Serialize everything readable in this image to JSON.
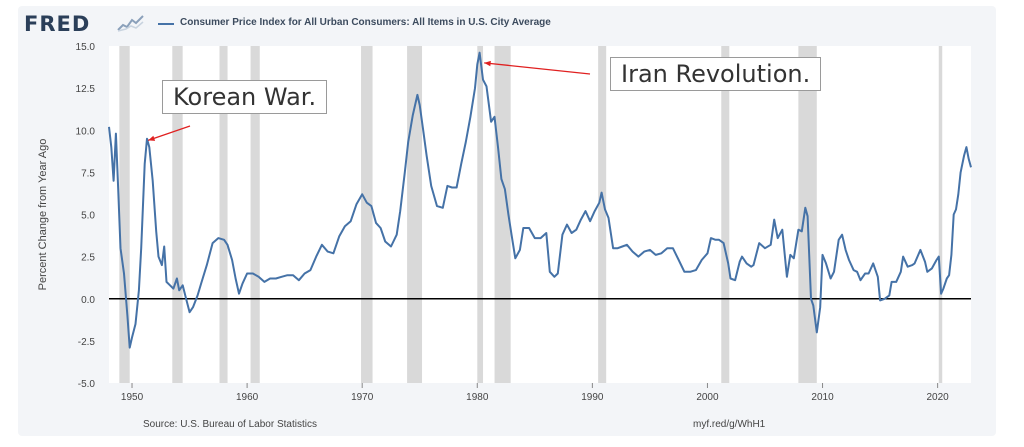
{
  "header": {
    "logo": "FRED",
    "series_title": "Consumer Price Index for All Urban Consumers: All Items in U.S. City Average"
  },
  "footer": {
    "source": "Source: U.S. Bureau of Labor Statistics",
    "url": "myf.red/g/WhH1"
  },
  "colors": {
    "line": "#4572a7",
    "recession": "#d9d9d9",
    "background": "#ffffff",
    "arrow": "#e02020",
    "zero_line": "#000000"
  },
  "chart_data": {
    "type": "line",
    "ylabel": "Percent Change from Year Ago",
    "xlabel": "",
    "xlim": [
      1948.0,
      2022.9
    ],
    "ylim": [
      -5.0,
      15.0
    ],
    "x_ticks": [
      1950,
      1960,
      1970,
      1980,
      1990,
      2000,
      2010,
      2020
    ],
    "x_tick_labels": [
      "1950",
      "1960",
      "1970",
      "1980",
      "1990",
      "2000",
      "2010",
      "2020"
    ],
    "y_ticks": [
      -5.0,
      -2.5,
      0.0,
      2.5,
      5.0,
      7.5,
      10.0,
      12.5,
      15.0
    ],
    "y_tick_labels": [
      "-5.0",
      "-2.5",
      "0.0",
      "2.5",
      "5.0",
      "7.5",
      "10.0",
      "12.5",
      "15.0"
    ],
    "grid": false,
    "reference_line": 0.0,
    "recessions": [
      [
        1948.9,
        1949.8
      ],
      [
        1953.5,
        1954.4
      ],
      [
        1957.6,
        1958.3
      ],
      [
        1960.3,
        1961.1
      ],
      [
        1969.9,
        1970.9
      ],
      [
        1973.9,
        1975.2
      ],
      [
        1980.0,
        1980.5
      ],
      [
        1981.5,
        1982.9
      ],
      [
        1990.5,
        1991.2
      ],
      [
        2001.2,
        2001.9
      ],
      [
        2007.9,
        2009.5
      ],
      [
        2020.1,
        2020.4
      ]
    ],
    "series": [
      {
        "values": [
          [
            1948.0,
            10.2
          ],
          [
            1948.2,
            9.0
          ],
          [
            1948.4,
            7.0
          ],
          [
            1948.6,
            9.8
          ],
          [
            1948.8,
            6.5
          ],
          [
            1949.0,
            3.0
          ],
          [
            1949.3,
            1.5
          ],
          [
            1949.6,
            -1.0
          ],
          [
            1949.8,
            -2.9
          ],
          [
            1950.0,
            -2.3
          ],
          [
            1950.3,
            -1.5
          ],
          [
            1950.6,
            0.5
          ],
          [
            1950.8,
            3.0
          ],
          [
            1951.1,
            8.0
          ],
          [
            1951.3,
            9.5
          ],
          [
            1951.5,
            9.0
          ],
          [
            1951.8,
            7.0
          ],
          [
            1952.1,
            4.0
          ],
          [
            1952.3,
            2.5
          ],
          [
            1952.6,
            2.0
          ],
          [
            1952.8,
            3.1
          ],
          [
            1953.0,
            1.0
          ],
          [
            1953.3,
            0.8
          ],
          [
            1953.6,
            0.6
          ],
          [
            1953.9,
            1.2
          ],
          [
            1954.1,
            0.5
          ],
          [
            1954.4,
            0.8
          ],
          [
            1954.7,
            0.0
          ],
          [
            1955.0,
            -0.8
          ],
          [
            1955.3,
            -0.5
          ],
          [
            1955.7,
            0.2
          ],
          [
            1956.0,
            0.9
          ],
          [
            1956.5,
            2.0
          ],
          [
            1957.0,
            3.3
          ],
          [
            1957.5,
            3.6
          ],
          [
            1958.0,
            3.5
          ],
          [
            1958.3,
            3.2
          ],
          [
            1958.7,
            2.3
          ],
          [
            1959.0,
            1.2
          ],
          [
            1959.3,
            0.3
          ],
          [
            1959.6,
            0.9
          ],
          [
            1960.0,
            1.5
          ],
          [
            1960.5,
            1.5
          ],
          [
            1961.0,
            1.3
          ],
          [
            1961.5,
            1.0
          ],
          [
            1962.0,
            1.2
          ],
          [
            1962.5,
            1.2
          ],
          [
            1963.0,
            1.3
          ],
          [
            1963.5,
            1.4
          ],
          [
            1964.0,
            1.4
          ],
          [
            1964.5,
            1.1
          ],
          [
            1965.0,
            1.5
          ],
          [
            1965.5,
            1.7
          ],
          [
            1966.0,
            2.5
          ],
          [
            1966.5,
            3.2
          ],
          [
            1967.0,
            2.8
          ],
          [
            1967.5,
            2.7
          ],
          [
            1968.0,
            3.7
          ],
          [
            1968.5,
            4.3
          ],
          [
            1969.0,
            4.6
          ],
          [
            1969.5,
            5.6
          ],
          [
            1970.0,
            6.2
          ],
          [
            1970.4,
            5.7
          ],
          [
            1970.8,
            5.5
          ],
          [
            1971.2,
            4.5
          ],
          [
            1971.6,
            4.2
          ],
          [
            1972.0,
            3.4
          ],
          [
            1972.5,
            3.1
          ],
          [
            1973.0,
            3.8
          ],
          [
            1973.3,
            5.2
          ],
          [
            1973.7,
            7.5
          ],
          [
            1974.0,
            9.3
          ],
          [
            1974.4,
            10.9
          ],
          [
            1974.8,
            12.1
          ],
          [
            1975.0,
            11.5
          ],
          [
            1975.3,
            10.0
          ],
          [
            1975.6,
            8.5
          ],
          [
            1976.0,
            6.7
          ],
          [
            1976.5,
            5.5
          ],
          [
            1977.0,
            5.4
          ],
          [
            1977.4,
            6.7
          ],
          [
            1977.8,
            6.6
          ],
          [
            1978.2,
            6.6
          ],
          [
            1978.6,
            8.0
          ],
          [
            1979.0,
            9.3
          ],
          [
            1979.4,
            10.8
          ],
          [
            1979.8,
            12.5
          ],
          [
            1980.0,
            13.9
          ],
          [
            1980.2,
            14.6
          ],
          [
            1980.5,
            13.0
          ],
          [
            1980.8,
            12.6
          ],
          [
            1981.2,
            10.5
          ],
          [
            1981.5,
            10.8
          ],
          [
            1981.8,
            9.0
          ],
          [
            1982.1,
            7.1
          ],
          [
            1982.4,
            6.5
          ],
          [
            1982.7,
            5.0
          ],
          [
            1983.0,
            3.7
          ],
          [
            1983.3,
            2.4
          ],
          [
            1983.7,
            2.9
          ],
          [
            1984.0,
            4.2
          ],
          [
            1984.5,
            4.2
          ],
          [
            1985.0,
            3.6
          ],
          [
            1985.5,
            3.6
          ],
          [
            1986.0,
            3.9
          ],
          [
            1986.3,
            1.6
          ],
          [
            1986.7,
            1.3
          ],
          [
            1987.0,
            1.5
          ],
          [
            1987.4,
            3.8
          ],
          [
            1987.8,
            4.4
          ],
          [
            1988.2,
            3.9
          ],
          [
            1988.6,
            4.1
          ],
          [
            1989.0,
            4.7
          ],
          [
            1989.4,
            5.2
          ],
          [
            1989.8,
            4.6
          ],
          [
            1990.2,
            5.2
          ],
          [
            1990.6,
            5.7
          ],
          [
            1990.8,
            6.3
          ],
          [
            1991.1,
            5.3
          ],
          [
            1991.4,
            4.8
          ],
          [
            1991.8,
            3.0
          ],
          [
            1992.2,
            3.0
          ],
          [
            1992.6,
            3.1
          ],
          [
            1993.0,
            3.2
          ],
          [
            1993.5,
            2.8
          ],
          [
            1994.0,
            2.5
          ],
          [
            1994.5,
            2.8
          ],
          [
            1995.0,
            2.9
          ],
          [
            1995.5,
            2.6
          ],
          [
            1996.0,
            2.7
          ],
          [
            1996.5,
            3.0
          ],
          [
            1997.0,
            3.0
          ],
          [
            1997.5,
            2.3
          ],
          [
            1998.0,
            1.6
          ],
          [
            1998.5,
            1.6
          ],
          [
            1999.0,
            1.7
          ],
          [
            1999.5,
            2.3
          ],
          [
            2000.0,
            2.7
          ],
          [
            2000.3,
            3.6
          ],
          [
            2000.7,
            3.5
          ],
          [
            2001.0,
            3.5
          ],
          [
            2001.4,
            3.3
          ],
          [
            2001.8,
            2.1
          ],
          [
            2002.0,
            1.2
          ],
          [
            2002.4,
            1.1
          ],
          [
            2002.8,
            2.2
          ],
          [
            2003.0,
            2.5
          ],
          [
            2003.4,
            2.1
          ],
          [
            2003.8,
            1.9
          ],
          [
            2004.0,
            2.0
          ],
          [
            2004.5,
            3.3
          ],
          [
            2005.0,
            3.0
          ],
          [
            2005.5,
            3.2
          ],
          [
            2005.8,
            4.7
          ],
          [
            2006.1,
            3.6
          ],
          [
            2006.5,
            4.1
          ],
          [
            2006.9,
            1.3
          ],
          [
            2007.2,
            2.6
          ],
          [
            2007.5,
            2.4
          ],
          [
            2007.9,
            4.1
          ],
          [
            2008.2,
            4.0
          ],
          [
            2008.5,
            5.4
          ],
          [
            2008.7,
            4.9
          ],
          [
            2009.0,
            0.0
          ],
          [
            2009.2,
            -0.4
          ],
          [
            2009.5,
            -2.0
          ],
          [
            2009.8,
            -0.5
          ],
          [
            2010.0,
            2.6
          ],
          [
            2010.3,
            2.1
          ],
          [
            2010.7,
            1.2
          ],
          [
            2011.0,
            1.6
          ],
          [
            2011.4,
            3.5
          ],
          [
            2011.7,
            3.8
          ],
          [
            2012.0,
            2.9
          ],
          [
            2012.3,
            2.3
          ],
          [
            2012.7,
            1.7
          ],
          [
            2013.0,
            1.6
          ],
          [
            2013.3,
            1.1
          ],
          [
            2013.7,
            1.5
          ],
          [
            2014.0,
            1.5
          ],
          [
            2014.4,
            2.1
          ],
          [
            2014.8,
            1.3
          ],
          [
            2015.0,
            -0.1
          ],
          [
            2015.4,
            0.0
          ],
          [
            2015.8,
            0.2
          ],
          [
            2016.0,
            1.0
          ],
          [
            2016.4,
            1.0
          ],
          [
            2016.8,
            1.6
          ],
          [
            2017.0,
            2.5
          ],
          [
            2017.4,
            1.9
          ],
          [
            2017.8,
            2.0
          ],
          [
            2018.0,
            2.1
          ],
          [
            2018.5,
            2.9
          ],
          [
            2018.9,
            2.2
          ],
          [
            2019.1,
            1.6
          ],
          [
            2019.5,
            1.8
          ],
          [
            2019.9,
            2.3
          ],
          [
            2020.1,
            2.5
          ],
          [
            2020.3,
            0.3
          ],
          [
            2020.5,
            0.6
          ],
          [
            2020.8,
            1.2
          ],
          [
            2021.0,
            1.4
          ],
          [
            2021.2,
            2.6
          ],
          [
            2021.4,
            5.0
          ],
          [
            2021.6,
            5.3
          ],
          [
            2021.8,
            6.2
          ],
          [
            2022.0,
            7.5
          ],
          [
            2022.3,
            8.5
          ],
          [
            2022.5,
            9.0
          ],
          [
            2022.7,
            8.3
          ],
          [
            2022.9,
            7.8
          ]
        ]
      }
    ],
    "annotations": [
      {
        "text": "Korean War.",
        "x": 1951.4,
        "y": 9.4
      },
      {
        "text": "Iran Revolution.",
        "x": 1980.6,
        "y": 14.0
      }
    ]
  }
}
